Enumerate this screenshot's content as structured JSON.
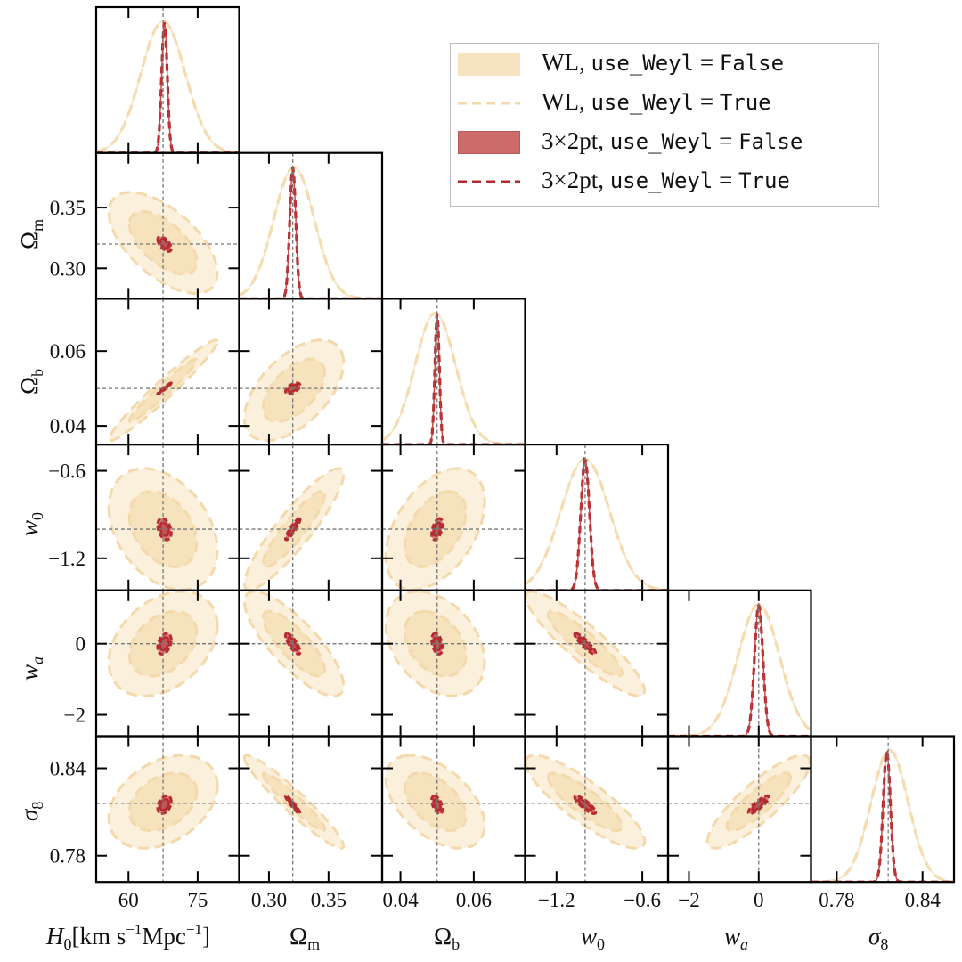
{
  "chart_data": {
    "type": "corner",
    "parameters": [
      {
        "key": "H0",
        "name": "H_0",
        "label": "H_0[km s^-1 Mpc^-1]",
        "fiducial": 67.5,
        "range": [
          53,
          84
        ],
        "ticks": [
          60,
          75
        ],
        "tick_labels": [
          "60",
          "75"
        ],
        "wl": {
          "mean": 67.5,
          "sigma": 4.8
        },
        "x2pt": {
          "mean": 67.8,
          "sigma": 0.6
        }
      },
      {
        "key": "Om",
        "name": "Omega_m",
        "label": "Ω_m",
        "fiducial": 0.32,
        "range": [
          0.275,
          0.395
        ],
        "ticks": [
          0.3,
          0.35
        ],
        "tick_labels": [
          "0.30",
          "0.35"
        ],
        "wl": {
          "mean": 0.321,
          "sigma": 0.017
        },
        "x2pt": {
          "mean": 0.32,
          "sigma": 0.0025
        }
      },
      {
        "key": "Ob",
        "name": "Omega_b",
        "label": "Ω_b",
        "fiducial": 0.05,
        "range": [
          0.035,
          0.074
        ],
        "ticks": [
          0.04,
          0.06
        ],
        "tick_labels": [
          "0.04",
          "0.06"
        ],
        "wl": {
          "mean": 0.0495,
          "sigma": 0.0055
        },
        "x2pt": {
          "mean": 0.05,
          "sigma": 0.0006
        }
      },
      {
        "key": "w0",
        "name": "w_0",
        "label": "w_0",
        "fiducial": -1.0,
        "range": [
          -1.42,
          -0.42
        ],
        "ticks": [
          -1.2,
          -0.6
        ],
        "tick_labels": [
          "−1.2",
          "−0.6"
        ],
        "wl": {
          "mean": -1.0,
          "sigma": 0.17
        },
        "x2pt": {
          "mean": -1.0,
          "sigma": 0.03
        }
      },
      {
        "key": "wa",
        "name": "w_a",
        "label": "w_a",
        "fiducial": 0.0,
        "range": [
          -2.6,
          1.5
        ],
        "ticks": [
          -2,
          0
        ],
        "tick_labels": [
          "−2",
          "0"
        ],
        "wl": {
          "mean": 0.0,
          "sigma": 0.6
        },
        "x2pt": {
          "mean": 0.0,
          "sigma": 0.12
        }
      },
      {
        "key": "s8",
        "name": "sigma_8",
        "label": "σ_8",
        "fiducial": 0.816,
        "range": [
          0.762,
          0.862
        ],
        "ticks": [
          0.78,
          0.84
        ],
        "tick_labels": [
          "0.78",
          "0.84"
        ],
        "wl": {
          "mean": 0.817,
          "sigma": 0.013
        },
        "x2pt": {
          "mean": 0.815,
          "sigma": 0.0025
        }
      }
    ],
    "correlations": {
      "H0|Om": -0.6,
      "H0|Ob": 0.97,
      "H0|w0": -0.35,
      "H0|wa": 0.35,
      "H0|s8": 0.35,
      "Om|Ob": 0.55,
      "Om|w0": 0.9,
      "Om|wa": -0.8,
      "Om|s8": -0.95,
      "Ob|w0": 0.45,
      "Ob|wa": -0.35,
      "Ob|s8": -0.5,
      "w0|wa": -0.9,
      "w0|s8": -0.85,
      "wa|s8": 0.85
    },
    "series": [
      {
        "name": "WL, use_Weyl = False",
        "style": "filled",
        "color": "#f5deb3"
      },
      {
        "name": "WL, use_Weyl = True",
        "style": "dashed",
        "color": "#f5deb3"
      },
      {
        "name": "3×2pt, use_Weyl = False",
        "style": "filled",
        "color": "#c0383a"
      },
      {
        "name": "3×2pt, use_Weyl = True",
        "style": "dashed",
        "color": "#c0383a"
      }
    ]
  },
  "axis_labels": {
    "x": [
      "H",
      "0",
      "[km s",
      "−1",
      "Mpc",
      "−1",
      "]",
      "Ω",
      "m",
      "Ω",
      "b",
      "w",
      "0",
      "w",
      "a",
      "σ",
      "8"
    ],
    "y": [
      "Ω",
      "m",
      "Ω",
      "b",
      "w",
      "0",
      "w",
      "a",
      "σ",
      "8"
    ]
  },
  "legend": {
    "entries": [
      {
        "prefix": "WL, ",
        "code": "use_Weyl",
        "op": " = ",
        "value": "False"
      },
      {
        "prefix": "WL, ",
        "code": "use_Weyl",
        "op": " = ",
        "value": "True"
      },
      {
        "prefix": "3×2pt, ",
        "code": "use_Weyl",
        "op": " = ",
        "value": "False"
      },
      {
        "prefix": "3×2pt, ",
        "code": "use_Weyl",
        "op": " = ",
        "value": "True"
      }
    ]
  },
  "colors": {
    "wl": "#f5deb3",
    "wl_line": "#f3d9ac",
    "x2pt": "#c0383a",
    "x2pt_line": "#b52a2e",
    "fiducial": "#777777"
  }
}
